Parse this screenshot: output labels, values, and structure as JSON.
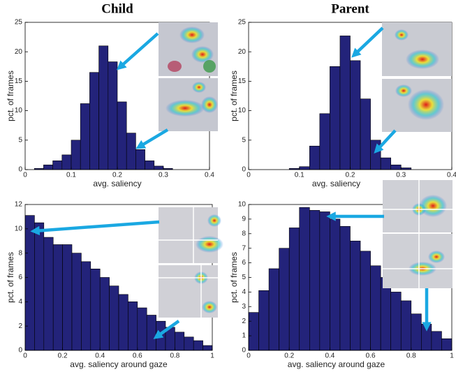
{
  "chart_data": [
    {
      "type": "histogram",
      "title": "Child",
      "xlabel": "avg. saliency",
      "ylabel": "pct. of frames",
      "bins": [
        0.02,
        0.04,
        0.06,
        0.08,
        0.1,
        0.12,
        0.14,
        0.16,
        0.18,
        0.2,
        0.22,
        0.24,
        0.26,
        0.28,
        0.3,
        0.32
      ],
      "values": [
        0.2,
        0.8,
        1.5,
        2.5,
        5,
        11.2,
        16.5,
        21,
        18.3,
        11.5,
        6.2,
        3.4,
        1.5,
        0.6,
        0.2
      ],
      "color": "#23237a",
      "xlim": [
        0,
        0.4
      ],
      "xticks": [
        0,
        0.1,
        0.2,
        0.3,
        0.4
      ],
      "ylim": [
        0,
        25
      ],
      "yticks": [
        0,
        5,
        10,
        15,
        20,
        25
      ]
    },
    {
      "type": "histogram",
      "title": "Parent",
      "xlabel": "avg. saliency",
      "ylabel": "pct. of frames",
      "bins": [
        0.08,
        0.1,
        0.12,
        0.14,
        0.16,
        0.18,
        0.2,
        0.22,
        0.24,
        0.26,
        0.28,
        0.3,
        0.32
      ],
      "values": [
        0.2,
        0.5,
        4,
        9.5,
        17.5,
        22.7,
        18.5,
        12,
        5,
        2,
        0.8,
        0.3
      ],
      "color": "#23237a",
      "xlim": [
        0,
        0.4
      ],
      "xticks": [
        0,
        0.1,
        0.2,
        0.3,
        0.4
      ],
      "ylim": [
        0,
        25
      ],
      "yticks": [
        0,
        5,
        10,
        15,
        20,
        25
      ]
    },
    {
      "type": "histogram",
      "xlabel": "avg. saliency around gaze",
      "ylabel": "pct. of frames",
      "bins": [
        0,
        0.05,
        0.1,
        0.15,
        0.2,
        0.25,
        0.3,
        0.35,
        0.4,
        0.45,
        0.5,
        0.55,
        0.6,
        0.65,
        0.7,
        0.75,
        0.8,
        0.85,
        0.9,
        0.95,
        1
      ],
      "values": [
        11.1,
        10.5,
        9.3,
        8.7,
        8.7,
        8.0,
        7.3,
        6.7,
        6.0,
        5.3,
        4.6,
        4.0,
        3.5,
        2.9,
        2.4,
        1.9,
        1.5,
        1.1,
        0.8,
        0.4
      ],
      "color": "#23237a",
      "xlim": [
        0,
        1
      ],
      "xticks": [
        0,
        0.2,
        0.4,
        0.6,
        0.8,
        1
      ],
      "ylim": [
        0,
        12
      ],
      "yticks": [
        0,
        2,
        4,
        6,
        8,
        10,
        12
      ]
    },
    {
      "type": "histogram",
      "xlabel": "avg. saliency around gaze",
      "ylabel": "pct. of frames",
      "bins": [
        0,
        0.05,
        0.1,
        0.15,
        0.2,
        0.25,
        0.3,
        0.35,
        0.4,
        0.45,
        0.5,
        0.55,
        0.6,
        0.65,
        0.7,
        0.75,
        0.8,
        0.85,
        0.9,
        0.95,
        1
      ],
      "values": [
        2.6,
        4.1,
        5.6,
        7.0,
        8.4,
        9.8,
        9.6,
        9.5,
        9.0,
        8.5,
        7.5,
        6.8,
        5.8,
        5.0,
        4.0,
        3.4,
        2.5,
        1.8,
        1.3,
        0.8
      ],
      "color": "#23237a",
      "xlim": [
        0,
        1
      ],
      "xticks": [
        0,
        0.2,
        0.4,
        0.6,
        0.8,
        1
      ],
      "ylim": [
        0,
        10
      ],
      "yticks": [
        0,
        1,
        2,
        3,
        4,
        5,
        6,
        7,
        8,
        9,
        10
      ]
    }
  ]
}
